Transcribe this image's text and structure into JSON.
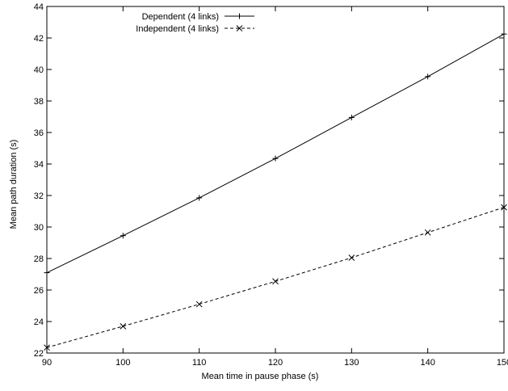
{
  "chart_data": {
    "type": "line",
    "title": "",
    "xlabel": "Mean time in pause phase (s)",
    "ylabel": "Mean path duration (s)",
    "xlim": [
      90,
      150
    ],
    "ylim": [
      22,
      44
    ],
    "x_ticks": [
      90,
      100,
      110,
      120,
      130,
      140,
      150
    ],
    "y_ticks": [
      22,
      24,
      26,
      28,
      30,
      32,
      34,
      36,
      38,
      40,
      42,
      44
    ],
    "grid": false,
    "legend_position": "top-left",
    "x": [
      90,
      100,
      110,
      120,
      130,
      140,
      150
    ],
    "series": [
      {
        "name": "Dependent (4 links)",
        "values": [
          27.1,
          29.45,
          31.85,
          34.35,
          36.95,
          39.55,
          42.25
        ],
        "marker": "plus",
        "line_style": "solid",
        "color": "#000000"
      },
      {
        "name": "Independent (4 links)",
        "values": [
          22.35,
          23.7,
          25.1,
          26.55,
          28.05,
          29.65,
          31.25
        ],
        "marker": "cross",
        "line_style": "dashed",
        "color": "#000000"
      }
    ]
  }
}
